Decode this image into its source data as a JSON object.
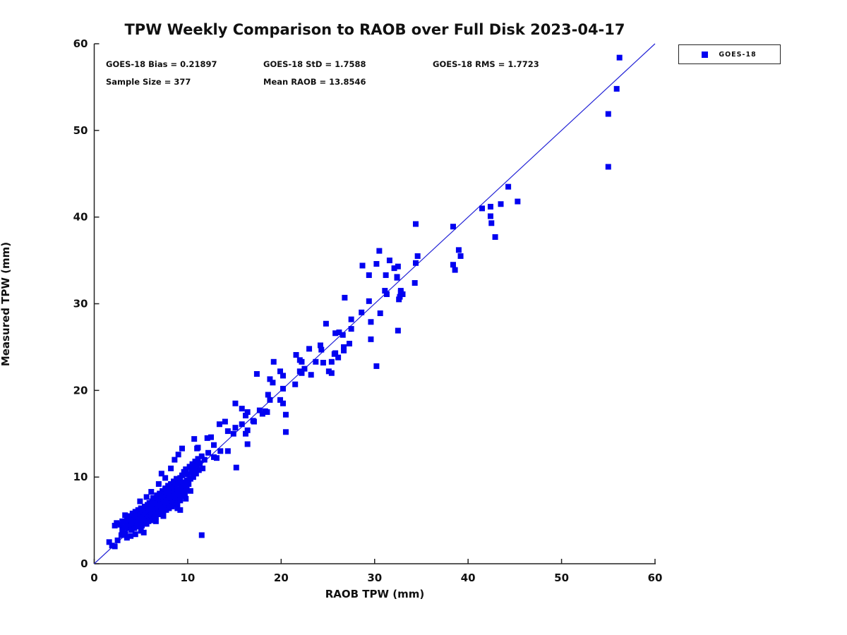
{
  "chart_data": {
    "type": "scatter",
    "title": "TPW Weekly Comparison to RAOB over Full Disk 2023-04-17",
    "xlabel": "RAOB TPW (mm)",
    "ylabel": "Measured TPW (mm)",
    "xlim": [
      0,
      60
    ],
    "ylim": [
      0,
      60
    ],
    "xticks": [
      0,
      10,
      20,
      30,
      40,
      50,
      60
    ],
    "yticks": [
      0,
      10,
      20,
      30,
      40,
      50,
      60
    ],
    "grid": false,
    "annotations": {
      "bias": "GOES-18 Bias = 0.21897",
      "std": "GOES-18 StD = 1.7588",
      "rms": "GOES-18 RMS = 1.7723",
      "sample": "Sample Size = 377",
      "mean_raob": "Mean RAOB = 13.8546"
    },
    "legend": {
      "position": "top-right-outside",
      "entries": [
        {
          "label": "GOES-18",
          "marker": "square",
          "color": "#0202f0"
        }
      ]
    },
    "reference_line": {
      "type": "identity",
      "from": [
        0,
        0
      ],
      "to": [
        60,
        60
      ],
      "color": "#2323d6"
    },
    "marker_color": "#0202f0",
    "marker_size_px": 8,
    "series": [
      {
        "name": "GOES-18",
        "points": [
          [
            56.2,
            58.4
          ],
          [
            55.9,
            54.8
          ],
          [
            55.0,
            51.9
          ],
          [
            55.0,
            45.8
          ],
          [
            44.3,
            43.5
          ],
          [
            45.3,
            41.8
          ],
          [
            43.5,
            41.5
          ],
          [
            42.4,
            41.2
          ],
          [
            41.5,
            41.0
          ],
          [
            42.4,
            40.1
          ],
          [
            42.5,
            39.3
          ],
          [
            42.9,
            37.7
          ],
          [
            34.4,
            39.2
          ],
          [
            38.4,
            38.9
          ],
          [
            39.0,
            36.2
          ],
          [
            39.2,
            35.5
          ],
          [
            38.4,
            34.5
          ],
          [
            38.6,
            33.9
          ],
          [
            34.6,
            35.5
          ],
          [
            34.4,
            34.7
          ],
          [
            34.3,
            32.4
          ],
          [
            30.5,
            36.1
          ],
          [
            31.6,
            35.0
          ],
          [
            30.2,
            34.6
          ],
          [
            32.1,
            34.1
          ],
          [
            28.7,
            34.4
          ],
          [
            29.4,
            33.3
          ],
          [
            31.2,
            33.3
          ],
          [
            32.4,
            33.1
          ],
          [
            32.5,
            34.3
          ],
          [
            32.4,
            33.0
          ],
          [
            31.1,
            31.5
          ],
          [
            31.3,
            31.1
          ],
          [
            32.8,
            31.3
          ],
          [
            33.0,
            31.1
          ],
          [
            32.6,
            30.5
          ],
          [
            32.8,
            31.5
          ],
          [
            32.7,
            30.8
          ],
          [
            26.8,
            30.7
          ],
          [
            29.4,
            30.3
          ],
          [
            28.6,
            29.0
          ],
          [
            30.6,
            28.9
          ],
          [
            29.6,
            27.9
          ],
          [
            27.5,
            28.2
          ],
          [
            24.8,
            27.7
          ],
          [
            27.5,
            27.1
          ],
          [
            26.2,
            26.7
          ],
          [
            25.8,
            26.6
          ],
          [
            26.6,
            26.4
          ],
          [
            32.5,
            26.9
          ],
          [
            27.3,
            25.4
          ],
          [
            29.6,
            25.9
          ],
          [
            26.7,
            25.0
          ],
          [
            26.7,
            24.6
          ],
          [
            25.7,
            24.2
          ],
          [
            26.1,
            23.8
          ],
          [
            25.4,
            23.3
          ],
          [
            25.4,
            22.0
          ],
          [
            30.2,
            22.8
          ],
          [
            24.2,
            25.2
          ],
          [
            23.0,
            24.8
          ],
          [
            24.3,
            24.7
          ],
          [
            25.8,
            24.3
          ],
          [
            21.6,
            24.1
          ],
          [
            19.2,
            23.3
          ],
          [
            22.0,
            23.5
          ],
          [
            22.2,
            23.3
          ],
          [
            23.7,
            23.3
          ],
          [
            24.5,
            23.2
          ],
          [
            22.5,
            22.5
          ],
          [
            23.2,
            21.8
          ],
          [
            22.0,
            22.2
          ],
          [
            22.2,
            22.0
          ],
          [
            25.1,
            22.2
          ],
          [
            21.5,
            20.7
          ],
          [
            17.4,
            21.9
          ],
          [
            19.9,
            22.2
          ],
          [
            20.2,
            21.7
          ],
          [
            18.8,
            21.3
          ],
          [
            19.1,
            20.9
          ],
          [
            20.2,
            20.2
          ],
          [
            18.6,
            19.5
          ],
          [
            18.8,
            18.9
          ],
          [
            19.9,
            18.9
          ],
          [
            20.2,
            18.5
          ],
          [
            17.7,
            17.7
          ],
          [
            18.3,
            17.6
          ],
          [
            18.5,
            17.5
          ],
          [
            18.0,
            17.3
          ],
          [
            20.5,
            17.2
          ],
          [
            17.0,
            16.5
          ],
          [
            16.4,
            17.5
          ],
          [
            16.4,
            15.4
          ],
          [
            20.5,
            15.2
          ],
          [
            16.4,
            13.8
          ],
          [
            15.1,
            18.5
          ],
          [
            15.8,
            17.9
          ],
          [
            16.2,
            17.1
          ],
          [
            17.1,
            16.4
          ],
          [
            13.4,
            16.1
          ],
          [
            14.0,
            16.4
          ],
          [
            14.3,
            15.3
          ],
          [
            15.1,
            15.7
          ],
          [
            14.9,
            15.0
          ],
          [
            15.8,
            16.1
          ],
          [
            16.2,
            15.0
          ],
          [
            12.1,
            14.5
          ],
          [
            12.5,
            14.6
          ],
          [
            12.8,
            13.7
          ],
          [
            13.5,
            13.0
          ],
          [
            14.3,
            13.0
          ],
          [
            13.1,
            12.2
          ],
          [
            15.2,
            11.1
          ],
          [
            11.0,
            13.3
          ],
          [
            11.1,
            13.4
          ],
          [
            9.4,
            13.3
          ],
          [
            12.2,
            12.8
          ],
          [
            11.8,
            12.0
          ],
          [
            11.5,
            12.4
          ],
          [
            11.3,
            11.6
          ],
          [
            11.1,
            12.1
          ],
          [
            11.6,
            11.0
          ],
          [
            11.2,
            10.8
          ],
          [
            12.8,
            12.3
          ],
          [
            11.5,
            3.3
          ],
          [
            1.6,
            2.5
          ],
          [
            1.9,
            2.1
          ],
          [
            2.2,
            2.0
          ],
          [
            2.5,
            2.7
          ],
          [
            2.2,
            4.4
          ],
          [
            2.4,
            4.7
          ],
          [
            2.8,
            4.5
          ],
          [
            2.9,
            3.3
          ],
          [
            3.0,
            3.9
          ],
          [
            3.2,
            4.2
          ],
          [
            3.3,
            3.5
          ],
          [
            3.0,
            4.9
          ],
          [
            3.4,
            4.6
          ],
          [
            3.5,
            5.2
          ],
          [
            3.3,
            5.6
          ],
          [
            3.6,
            4.1
          ],
          [
            3.7,
            4.9
          ],
          [
            3.8,
            5.5
          ],
          [
            3.9,
            4.4
          ],
          [
            3.9,
            3.2
          ],
          [
            3.5,
            3.0
          ],
          [
            4.0,
            5.0
          ],
          [
            4.0,
            3.9
          ],
          [
            4.1,
            5.8
          ],
          [
            4.2,
            4.6
          ],
          [
            4.3,
            5.2
          ],
          [
            4.3,
            4.1
          ],
          [
            4.4,
            6.0
          ],
          [
            4.4,
            3.4
          ],
          [
            4.5,
            4.8
          ],
          [
            4.5,
            5.5
          ],
          [
            4.6,
            4.3
          ],
          [
            4.7,
            5.1
          ],
          [
            4.7,
            6.2
          ],
          [
            4.8,
            4.6
          ],
          [
            4.9,
            5.7
          ],
          [
            4.9,
            7.2
          ],
          [
            5.0,
            5.0
          ],
          [
            5.0,
            6.4
          ],
          [
            5.0,
            3.8
          ],
          [
            5.1,
            4.4
          ],
          [
            5.2,
            5.3
          ],
          [
            5.2,
            6.0
          ],
          [
            5.3,
            3.6
          ],
          [
            5.3,
            4.8
          ],
          [
            5.4,
            5.6
          ],
          [
            5.4,
            6.6
          ],
          [
            5.5,
            5.1
          ],
          [
            5.5,
            6.1
          ],
          [
            5.6,
            4.6
          ],
          [
            5.6,
            5.8
          ],
          [
            5.6,
            7.7
          ],
          [
            5.7,
            5.3
          ],
          [
            5.7,
            6.8
          ],
          [
            5.8,
            4.9
          ],
          [
            5.8,
            6.3
          ],
          [
            5.9,
            5.5
          ],
          [
            5.9,
            7.0
          ],
          [
            6.0,
            5.0
          ],
          [
            6.0,
            6.0
          ],
          [
            6.1,
            6.6
          ],
          [
            6.1,
            5.6
          ],
          [
            6.1,
            8.3
          ],
          [
            6.2,
            7.2
          ],
          [
            6.2,
            5.2
          ],
          [
            6.3,
            6.2
          ],
          [
            6.3,
            7.6
          ],
          [
            6.4,
            5.8
          ],
          [
            6.4,
            6.8
          ],
          [
            6.5,
            6.3
          ],
          [
            6.5,
            7.4
          ],
          [
            6.6,
            5.4
          ],
          [
            6.6,
            6.0
          ],
          [
            6.6,
            4.9
          ],
          [
            6.7,
            7.0
          ],
          [
            6.7,
            7.9
          ],
          [
            6.8,
            6.5
          ],
          [
            6.8,
            5.7
          ],
          [
            6.9,
            7.5
          ],
          [
            6.9,
            6.1
          ],
          [
            6.9,
            9.2
          ],
          [
            7.0,
            6.7
          ],
          [
            7.0,
            8.1
          ],
          [
            7.1,
            7.2
          ],
          [
            7.1,
            5.9
          ],
          [
            7.2,
            7.8
          ],
          [
            7.2,
            6.3
          ],
          [
            7.2,
            10.4
          ],
          [
            7.3,
            6.9
          ],
          [
            7.3,
            8.4
          ],
          [
            7.4,
            7.4
          ],
          [
            7.4,
            6.0
          ],
          [
            7.4,
            5.5
          ],
          [
            7.5,
            8.0
          ],
          [
            7.5,
            6.6
          ],
          [
            7.6,
            7.1
          ],
          [
            7.6,
            8.7
          ],
          [
            7.6,
            9.9
          ],
          [
            7.7,
            7.7
          ],
          [
            7.7,
            6.2
          ],
          [
            7.8,
            8.2
          ],
          [
            7.8,
            6.8
          ],
          [
            7.9,
            7.3
          ],
          [
            7.9,
            9.0
          ],
          [
            8.0,
            7.9
          ],
          [
            8.0,
            6.4
          ],
          [
            8.1,
            8.5
          ],
          [
            8.1,
            7.0
          ],
          [
            8.2,
            7.6
          ],
          [
            8.2,
            9.2
          ],
          [
            8.2,
            11.0
          ],
          [
            8.3,
            8.1
          ],
          [
            8.3,
            6.6
          ],
          [
            8.4,
            8.8
          ],
          [
            8.4,
            7.2
          ],
          [
            8.5,
            7.8
          ],
          [
            8.5,
            9.5
          ],
          [
            8.6,
            8.3
          ],
          [
            8.6,
            6.8
          ],
          [
            8.6,
            12.0
          ],
          [
            8.7,
            9.0
          ],
          [
            8.7,
            7.4
          ],
          [
            8.8,
            8.0
          ],
          [
            8.8,
            9.8
          ],
          [
            8.9,
            8.6
          ],
          [
            8.9,
            7.0
          ],
          [
            8.9,
            6.4
          ],
          [
            9.0,
            9.3
          ],
          [
            9.0,
            7.6
          ],
          [
            9.0,
            12.6
          ],
          [
            9.1,
            8.2
          ],
          [
            9.2,
            9.9
          ],
          [
            9.2,
            7.3
          ],
          [
            9.2,
            6.2
          ],
          [
            9.3,
            8.8
          ],
          [
            9.4,
            7.8
          ],
          [
            9.4,
            10.2
          ],
          [
            9.5,
            9.4
          ],
          [
            9.5,
            8.4
          ],
          [
            9.6,
            10.6
          ],
          [
            9.7,
            9.0
          ],
          [
            9.7,
            8.0
          ],
          [
            9.8,
            10.9
          ],
          [
            9.8,
            7.5
          ],
          [
            9.9,
            9.6
          ],
          [
            9.9,
            8.6
          ],
          [
            10.0,
            10.3
          ],
          [
            10.1,
            9.2
          ],
          [
            10.2,
            11.2
          ],
          [
            10.3,
            9.8
          ],
          [
            10.3,
            8.4
          ],
          [
            10.4,
            10.6
          ],
          [
            10.5,
            11.5
          ],
          [
            10.6,
            10.0
          ],
          [
            10.7,
            11.0
          ],
          [
            10.7,
            14.4
          ],
          [
            10.8,
            11.8
          ],
          [
            10.9,
            10.4
          ],
          [
            11.0,
            11.3
          ]
        ]
      }
    ]
  }
}
